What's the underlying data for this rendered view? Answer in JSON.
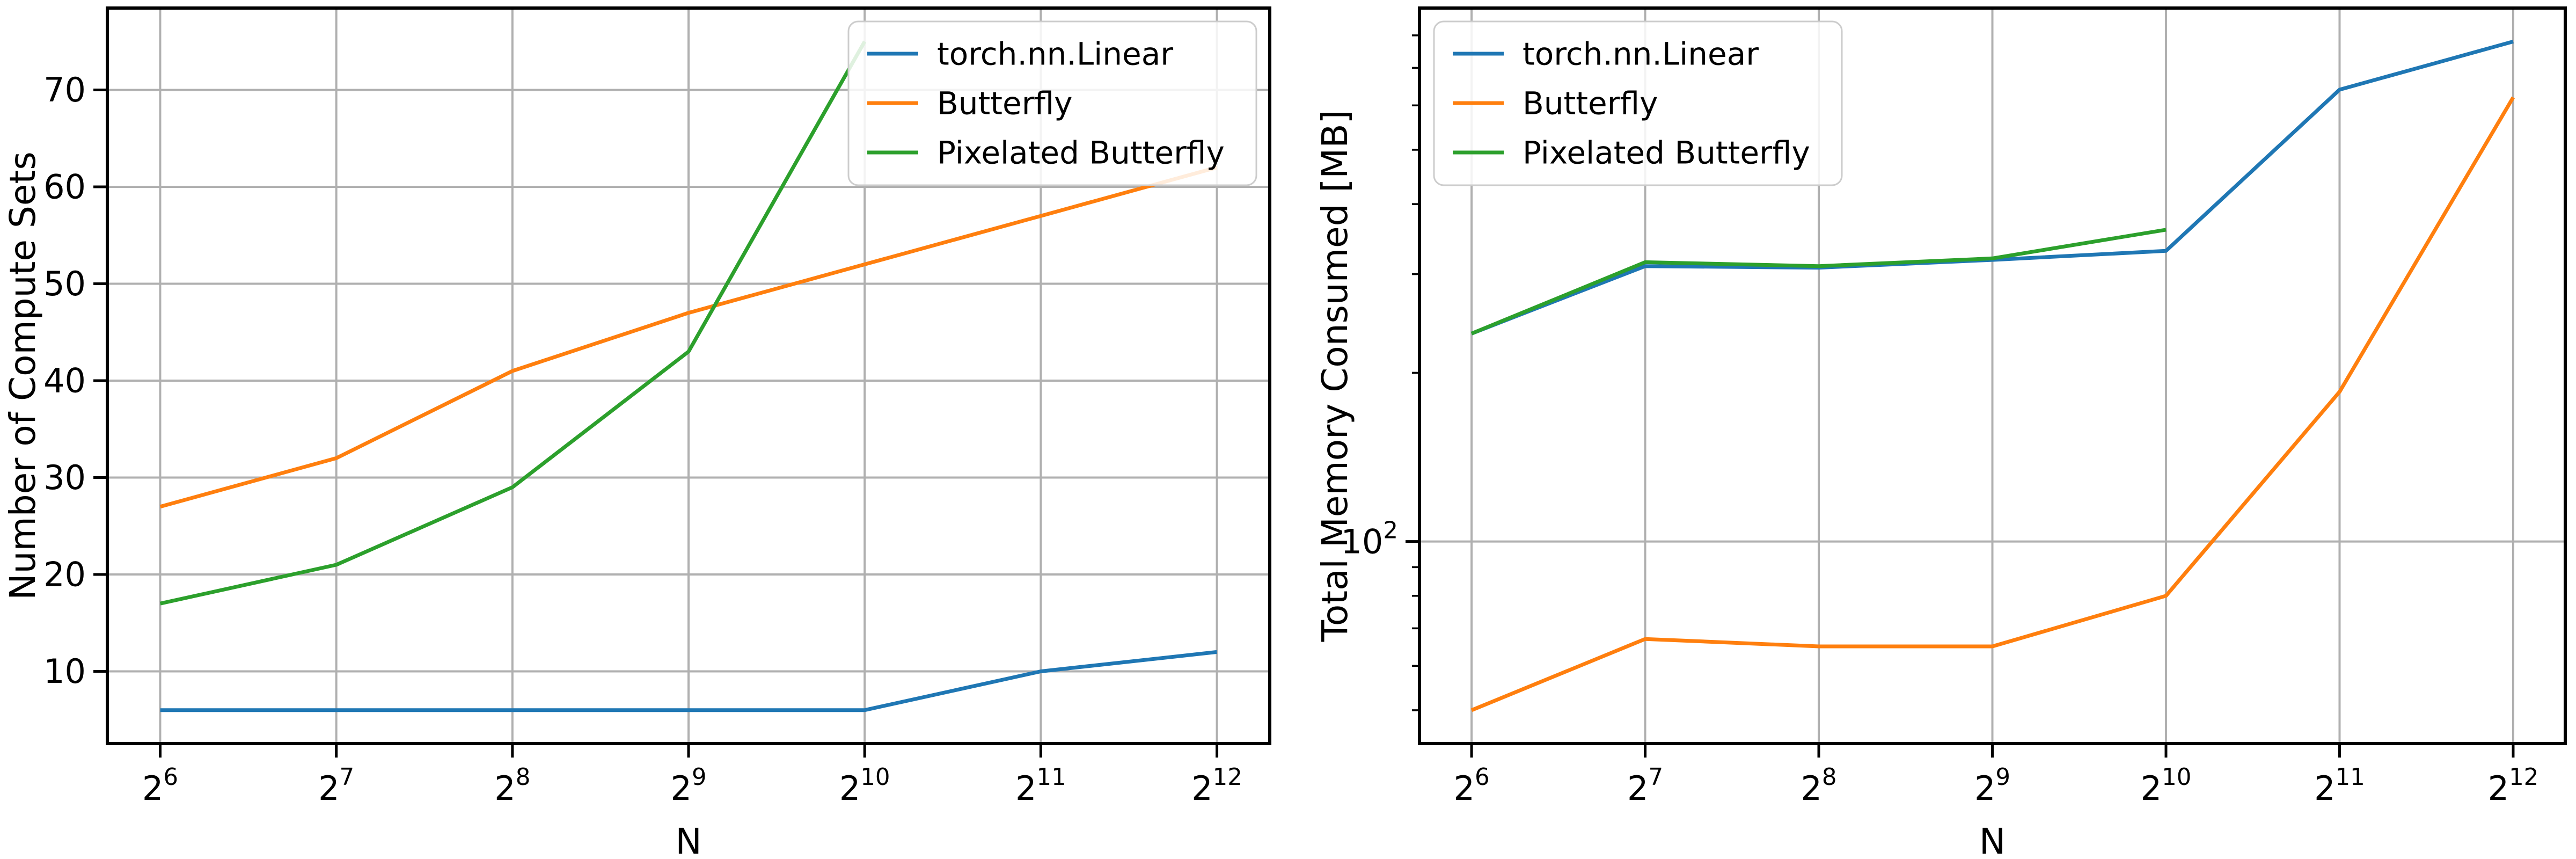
{
  "figure": {
    "background": "#ffffff",
    "grid_color": "#b0b0b0",
    "spine_color": "#000000",
    "legend_border_color": "#cccccc",
    "legend_background": "#ffffff"
  },
  "chart_data": [
    {
      "id": "compute-sets",
      "type": "line",
      "title": "",
      "xlabel": "N",
      "ylabel": "Number of Compute Sets",
      "x_axis": {
        "scale": "log2",
        "base": 2,
        "exponents": [
          6,
          7,
          8,
          9,
          10,
          11,
          12
        ],
        "values": [
          64,
          128,
          256,
          512,
          1024,
          2048,
          4096
        ],
        "tick_labels": [
          "2^6",
          "2^7",
          "2^8",
          "2^9",
          "2^10",
          "2^11",
          "2^12"
        ],
        "margin_octaves": 0.3
      },
      "y_axis": {
        "scale": "linear",
        "ticks": [
          10,
          20,
          30,
          40,
          50,
          60,
          70
        ],
        "lim": [
          2.55,
          78.45
        ],
        "grid": true
      },
      "series": [
        {
          "name": "torch.nn.Linear",
          "color": "#1f77b4",
          "values": [
            6,
            6,
            6,
            6,
            6,
            10,
            12
          ]
        },
        {
          "name": "Butterfly",
          "color": "#ff7f0e",
          "values": [
            27,
            32,
            41,
            47,
            52,
            57,
            62
          ]
        },
        {
          "name": "Pixelated Butterfly",
          "color": "#2ca02c",
          "values": [
            17,
            21,
            29,
            43,
            75,
            null,
            null
          ]
        }
      ],
      "legend": {
        "position": "upper-right",
        "entries": [
          "torch.nn.Linear",
          "Butterfly",
          "Pixelated Butterfly"
        ]
      }
    },
    {
      "id": "total-memory",
      "type": "line",
      "title": "",
      "xlabel": "N",
      "ylabel": "Total Memory Consumed [MB]",
      "x_axis": {
        "scale": "log2",
        "base": 2,
        "exponents": [
          6,
          7,
          8,
          9,
          10,
          11,
          12
        ],
        "values": [
          64,
          128,
          256,
          512,
          1024,
          2048,
          4096
        ],
        "tick_labels": [
          "2^6",
          "2^7",
          "2^8",
          "2^9",
          "2^10",
          "2^11",
          "2^12"
        ],
        "margin_octaves": 0.3
      },
      "y_axis": {
        "scale": "log10",
        "major_ticks": [
          {
            "value": 100,
            "label_base": "10",
            "label_exp": "2"
          }
        ],
        "minor_ticks": [
          50,
          60,
          70,
          80,
          90,
          200,
          300,
          400,
          500,
          600,
          700,
          800
        ],
        "lim": [
          43.6,
          895
        ],
        "grid_major_only": true
      },
      "series": [
        {
          "name": "torch.nn.Linear",
          "color": "#1f77b4",
          "values": [
            235,
            310,
            308,
            318,
            330,
            640,
            780
          ]
        },
        {
          "name": "Butterfly",
          "color": "#ff7f0e",
          "values": [
            50,
            67,
            65,
            65,
            80,
            185,
            620
          ]
        },
        {
          "name": "Pixelated Butterfly",
          "color": "#2ca02c",
          "values": [
            235,
            315,
            310,
            320,
            360,
            null,
            null
          ]
        }
      ],
      "legend": {
        "position": "upper-left",
        "entries": [
          "torch.nn.Linear",
          "Butterfly",
          "Pixelated Butterfly"
        ]
      }
    }
  ]
}
